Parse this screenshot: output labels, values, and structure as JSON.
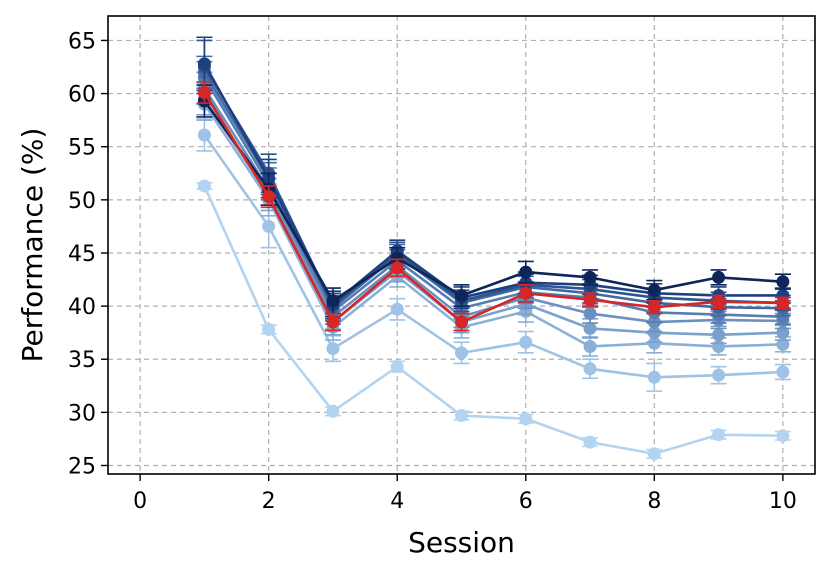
{
  "chart_data": {
    "type": "line",
    "xlabel": "Session",
    "ylabel": "Performance (%)",
    "xlim": [
      -0.5,
      10.5
    ],
    "ylim": [
      24.2,
      67.3
    ],
    "xticks": [
      0,
      2,
      4,
      6,
      8,
      10
    ],
    "yticks": [
      25,
      30,
      35,
      40,
      45,
      50,
      55,
      60,
      65
    ],
    "grid": true,
    "x": [
      1,
      2,
      3,
      4,
      5,
      6,
      7,
      8,
      9,
      10
    ],
    "series": [
      {
        "color": "#b3d4f0",
        "values": [
          51.3,
          37.8,
          30.1,
          34.3,
          29.7,
          29.4,
          27.2,
          26.1,
          27.9,
          27.8
        ],
        "errors": [
          0.3,
          0.4,
          0.4,
          0.5,
          0.4,
          0.4,
          0.4,
          0.4,
          0.4,
          0.4
        ]
      },
      {
        "color": "#9fc3e4",
        "values": [
          56.1,
          47.5,
          36.0,
          39.7,
          35.6,
          36.6,
          34.1,
          33.3,
          33.5,
          33.8
        ],
        "errors": [
          1.5,
          2.0,
          1.2,
          1.0,
          1.0,
          1.0,
          0.9,
          1.3,
          0.8,
          0.7
        ]
      },
      {
        "color": "#8ab0d8",
        "values": [
          59.0,
          50.0,
          38.0,
          42.8,
          38.0,
          39.5,
          36.2,
          36.5,
          36.2,
          36.4
        ],
        "errors": [
          1.5,
          1.5,
          1.2,
          1.0,
          1.0,
          1.0,
          0.9,
          0.9,
          0.8,
          0.7
        ]
      },
      {
        "color": "#7aa0cc",
        "values": [
          59.5,
          50.5,
          38.5,
          43.3,
          38.5,
          40.2,
          37.9,
          37.5,
          37.3,
          37.5
        ],
        "errors": [
          1.5,
          1.5,
          1.2,
          1.0,
          1.0,
          1.0,
          0.9,
          0.9,
          0.8,
          0.7
        ]
      },
      {
        "color": "#6a8fc0",
        "values": [
          60.5,
          51.0,
          39.0,
          43.8,
          39.0,
          40.8,
          39.3,
          38.5,
          38.7,
          38.6
        ],
        "errors": [
          1.5,
          1.5,
          1.2,
          1.0,
          1.0,
          1.0,
          0.9,
          0.9,
          0.8,
          0.7
        ]
      },
      {
        "color": "#557db2",
        "values": [
          61.5,
          51.5,
          39.5,
          44.3,
          39.8,
          41.3,
          40.8,
          39.4,
          39.2,
          39.0
        ],
        "errors": [
          1.5,
          1.5,
          1.2,
          1.0,
          1.0,
          1.0,
          0.9,
          0.9,
          0.8,
          0.7
        ]
      },
      {
        "color": "#4169a2",
        "values": [
          62.0,
          52.0,
          39.8,
          44.8,
          40.3,
          41.8,
          41.2,
          40.3,
          39.9,
          39.8
        ],
        "errors": [
          1.5,
          1.5,
          1.2,
          1.0,
          1.0,
          1.0,
          0.9,
          0.9,
          0.8,
          0.7
        ]
      },
      {
        "color": "#2e5590",
        "values": [
          62.5,
          52.5,
          40.0,
          45.0,
          40.5,
          42.0,
          41.6,
          40.8,
          40.5,
          40.3
        ],
        "errors": [
          2.5,
          1.8,
          1.2,
          1.0,
          1.0,
          1.0,
          0.9,
          0.9,
          0.8,
          0.7
        ]
      },
      {
        "color": "#1f4080",
        "values": [
          62.8,
          52.0,
          40.2,
          45.2,
          40.8,
          42.2,
          42.0,
          41.2,
          41.0,
          41.0
        ],
        "errors": [
          2.5,
          1.8,
          1.2,
          1.0,
          1.0,
          1.0,
          0.9,
          0.9,
          0.8,
          0.7
        ]
      },
      {
        "color": "#0d2559",
        "values": [
          59.3,
          51.0,
          40.5,
          44.5,
          41.0,
          43.2,
          42.7,
          41.5,
          42.7,
          42.3
        ],
        "errors": [
          1.5,
          1.5,
          1.2,
          1.0,
          1.0,
          1.0,
          0.7,
          0.9,
          0.7,
          0.7
        ]
      },
      {
        "color": "#d62728",
        "values": [
          60.1,
          50.3,
          38.5,
          43.6,
          38.5,
          41.2,
          40.6,
          39.9,
          40.4,
          40.3
        ],
        "errors": [
          1.0,
          1.0,
          0.8,
          0.8,
          0.8,
          0.8,
          0.6,
          0.6,
          0.6,
          0.5
        ]
      }
    ]
  }
}
